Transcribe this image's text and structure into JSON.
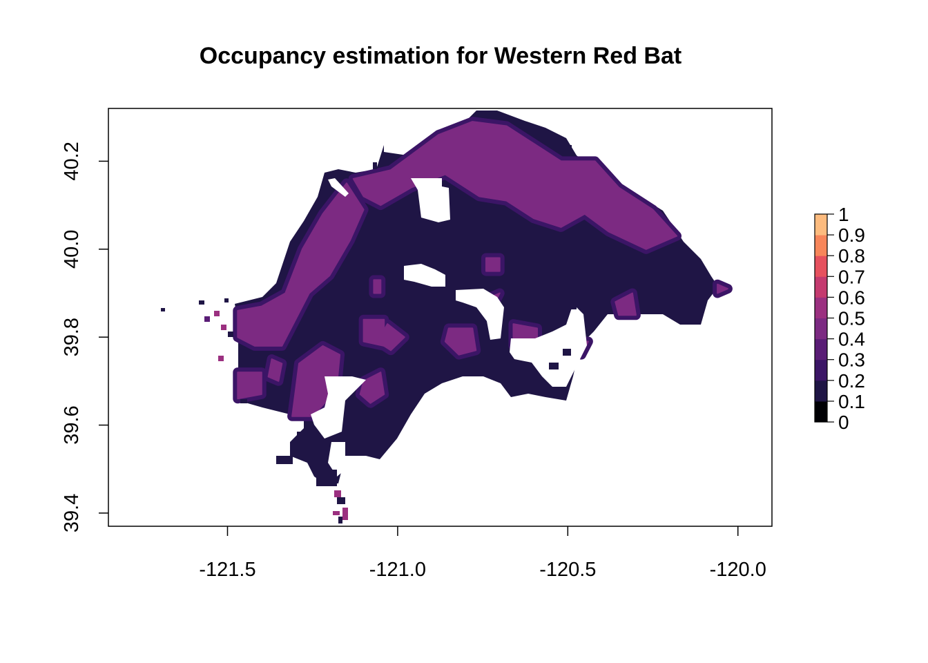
{
  "title": "Occupancy estimation for Western Red Bat",
  "colors": {
    "c0": "#000004",
    "c1": "#1f1545",
    "c2": "#3b1566",
    "c3": "#5a1d76",
    "c4": "#7c2a82",
    "c5": "#9b3080",
    "c6": "#c43a6f",
    "c7": "#e6515e",
    "c8": "#f7865a",
    "c9": "#fdbb7e",
    "c10": "#fcfdbf"
  },
  "chart_data": {
    "type": "heatmap",
    "title": "Occupancy estimation for Western Red Bat",
    "xlabel": "",
    "ylabel": "",
    "xlim": [
      -121.85,
      -119.9
    ],
    "ylim": [
      39.37,
      40.32
    ],
    "x_ticks": [
      -121.5,
      -121.0,
      -120.5,
      -120.0
    ],
    "x_tick_labels": [
      "-121.5",
      "-121.0",
      "-120.5",
      "-120.0"
    ],
    "y_ticks": [
      39.4,
      39.6,
      39.8,
      40.0,
      40.2
    ],
    "y_tick_labels": [
      "39.4",
      "39.6",
      "39.8",
      "40.0",
      "40.2"
    ],
    "legend": {
      "placement": "right",
      "breaks": [
        0,
        0.1,
        0.2,
        0.3,
        0.4,
        0.5,
        0.6,
        0.7,
        0.8,
        0.9,
        1
      ],
      "labels": [
        "0",
        "0.1",
        "0.2",
        "0.3",
        "0.4",
        "0.5",
        "0.6",
        "0.7",
        "0.8",
        "0.9",
        "1"
      ],
      "colors": [
        "#000004",
        "#1f1545",
        "#3b1566",
        "#5a1d76",
        "#7c2a82",
        "#9b3080",
        "#c43a6f",
        "#e6515e",
        "#f7865a",
        "#fdbb7e"
      ]
    },
    "base_occupancy": 0.15,
    "high_occupancy_regions": [
      {
        "name": "north-ridge",
        "value": 0.45,
        "polygon": [
          [
            -121.13,
            40.16
          ],
          [
            -121.02,
            40.18
          ],
          [
            -120.88,
            40.26
          ],
          [
            -120.78,
            40.29
          ],
          [
            -120.68,
            40.28
          ],
          [
            -120.6,
            40.24
          ],
          [
            -120.52,
            40.2
          ],
          [
            -120.42,
            40.2
          ],
          [
            -120.35,
            40.14
          ],
          [
            -120.25,
            40.09
          ],
          [
            -120.18,
            40.03
          ],
          [
            -120.27,
            40.0
          ],
          [
            -120.38,
            40.04
          ],
          [
            -120.45,
            40.08
          ],
          [
            -120.52,
            40.05
          ],
          [
            -120.6,
            40.07
          ],
          [
            -120.68,
            40.11
          ],
          [
            -120.76,
            40.12
          ],
          [
            -120.86,
            40.17
          ],
          [
            -120.96,
            40.14
          ],
          [
            -121.05,
            40.1
          ],
          [
            -121.1,
            40.12
          ]
        ]
      },
      {
        "name": "west-band",
        "value": 0.45,
        "polygon": [
          [
            -121.47,
            39.86
          ],
          [
            -121.4,
            39.87
          ],
          [
            -121.33,
            39.9
          ],
          [
            -121.28,
            40.0
          ],
          [
            -121.22,
            40.08
          ],
          [
            -121.15,
            40.15
          ],
          [
            -121.1,
            40.09
          ],
          [
            -121.14,
            40.02
          ],
          [
            -121.2,
            39.94
          ],
          [
            -121.26,
            39.9
          ],
          [
            -121.3,
            39.84
          ],
          [
            -121.34,
            39.78
          ],
          [
            -121.42,
            39.78
          ],
          [
            -121.47,
            39.8
          ]
        ]
      },
      {
        "name": "southwest-arm",
        "value": 0.45,
        "polygon": [
          [
            -121.29,
            39.74
          ],
          [
            -121.22,
            39.78
          ],
          [
            -121.17,
            39.76
          ],
          [
            -121.18,
            39.68
          ],
          [
            -121.25,
            39.62
          ],
          [
            -121.31,
            39.62
          ],
          [
            -121.3,
            39.68
          ]
        ]
      },
      {
        "name": "west-edge",
        "value": 0.45,
        "polygon": [
          [
            -121.47,
            39.72
          ],
          [
            -121.4,
            39.72
          ],
          [
            -121.4,
            39.67
          ],
          [
            -121.47,
            39.66
          ]
        ]
      },
      {
        "name": "patch-sw1",
        "value": 0.45,
        "polygon": [
          [
            -121.37,
            39.75
          ],
          [
            -121.34,
            39.74
          ],
          [
            -121.35,
            39.7
          ],
          [
            -121.38,
            39.71
          ]
        ]
      },
      {
        "name": "patch-sw2",
        "value": 0.45,
        "polygon": [
          [
            -121.1,
            39.7
          ],
          [
            -121.05,
            39.72
          ],
          [
            -121.04,
            39.67
          ],
          [
            -121.08,
            39.65
          ],
          [
            -121.11,
            39.67
          ]
        ]
      },
      {
        "name": "patch-c1",
        "value": 0.45,
        "polygon": [
          [
            -121.1,
            39.84
          ],
          [
            -121.04,
            39.84
          ],
          [
            -121.04,
            39.78
          ],
          [
            -121.1,
            39.79
          ]
        ]
      },
      {
        "name": "patch-c2",
        "value": 0.45,
        "polygon": [
          [
            -121.03,
            39.83
          ],
          [
            -120.98,
            39.8
          ],
          [
            -121.02,
            39.77
          ],
          [
            -121.06,
            39.79
          ]
        ]
      },
      {
        "name": "patch-c3",
        "value": 0.45,
        "polygon": [
          [
            -121.07,
            39.93
          ],
          [
            -121.05,
            39.93
          ],
          [
            -121.05,
            39.9
          ],
          [
            -121.07,
            39.9
          ]
        ]
      },
      {
        "name": "patch-m1",
        "value": 0.45,
        "polygon": [
          [
            -120.85,
            39.82
          ],
          [
            -120.78,
            39.82
          ],
          [
            -120.77,
            39.77
          ],
          [
            -120.82,
            39.76
          ],
          [
            -120.86,
            39.79
          ]
        ]
      },
      {
        "name": "patch-m2",
        "value": 0.45,
        "polygon": [
          [
            -120.66,
            39.83
          ],
          [
            -120.59,
            39.82
          ],
          [
            -120.59,
            39.78
          ],
          [
            -120.66,
            39.78
          ]
        ]
      },
      {
        "name": "patch-m3",
        "value": 0.45,
        "polygon": [
          [
            -120.74,
            39.98
          ],
          [
            -120.7,
            39.98
          ],
          [
            -120.7,
            39.95
          ],
          [
            -120.74,
            39.95
          ]
        ]
      },
      {
        "name": "patch-m4",
        "value": 0.45,
        "polygon": [
          [
            -120.73,
            39.89
          ],
          [
            -120.7,
            39.9
          ],
          [
            -120.72,
            39.87
          ]
        ]
      },
      {
        "name": "patch-e1",
        "value": 0.45,
        "polygon": [
          [
            -120.36,
            39.88
          ],
          [
            -120.31,
            39.9
          ],
          [
            -120.3,
            39.85
          ],
          [
            -120.35,
            39.85
          ]
        ]
      },
      {
        "name": "patch-e2",
        "value": 0.45,
        "polygon": [
          [
            -120.49,
            39.79
          ],
          [
            -120.44,
            39.79
          ],
          [
            -120.46,
            39.76
          ]
        ]
      },
      {
        "name": "patch-e3",
        "value": 0.45,
        "polygon": [
          [
            -120.06,
            39.92
          ],
          [
            -120.03,
            39.91
          ],
          [
            -120.06,
            39.9
          ]
        ]
      }
    ]
  }
}
